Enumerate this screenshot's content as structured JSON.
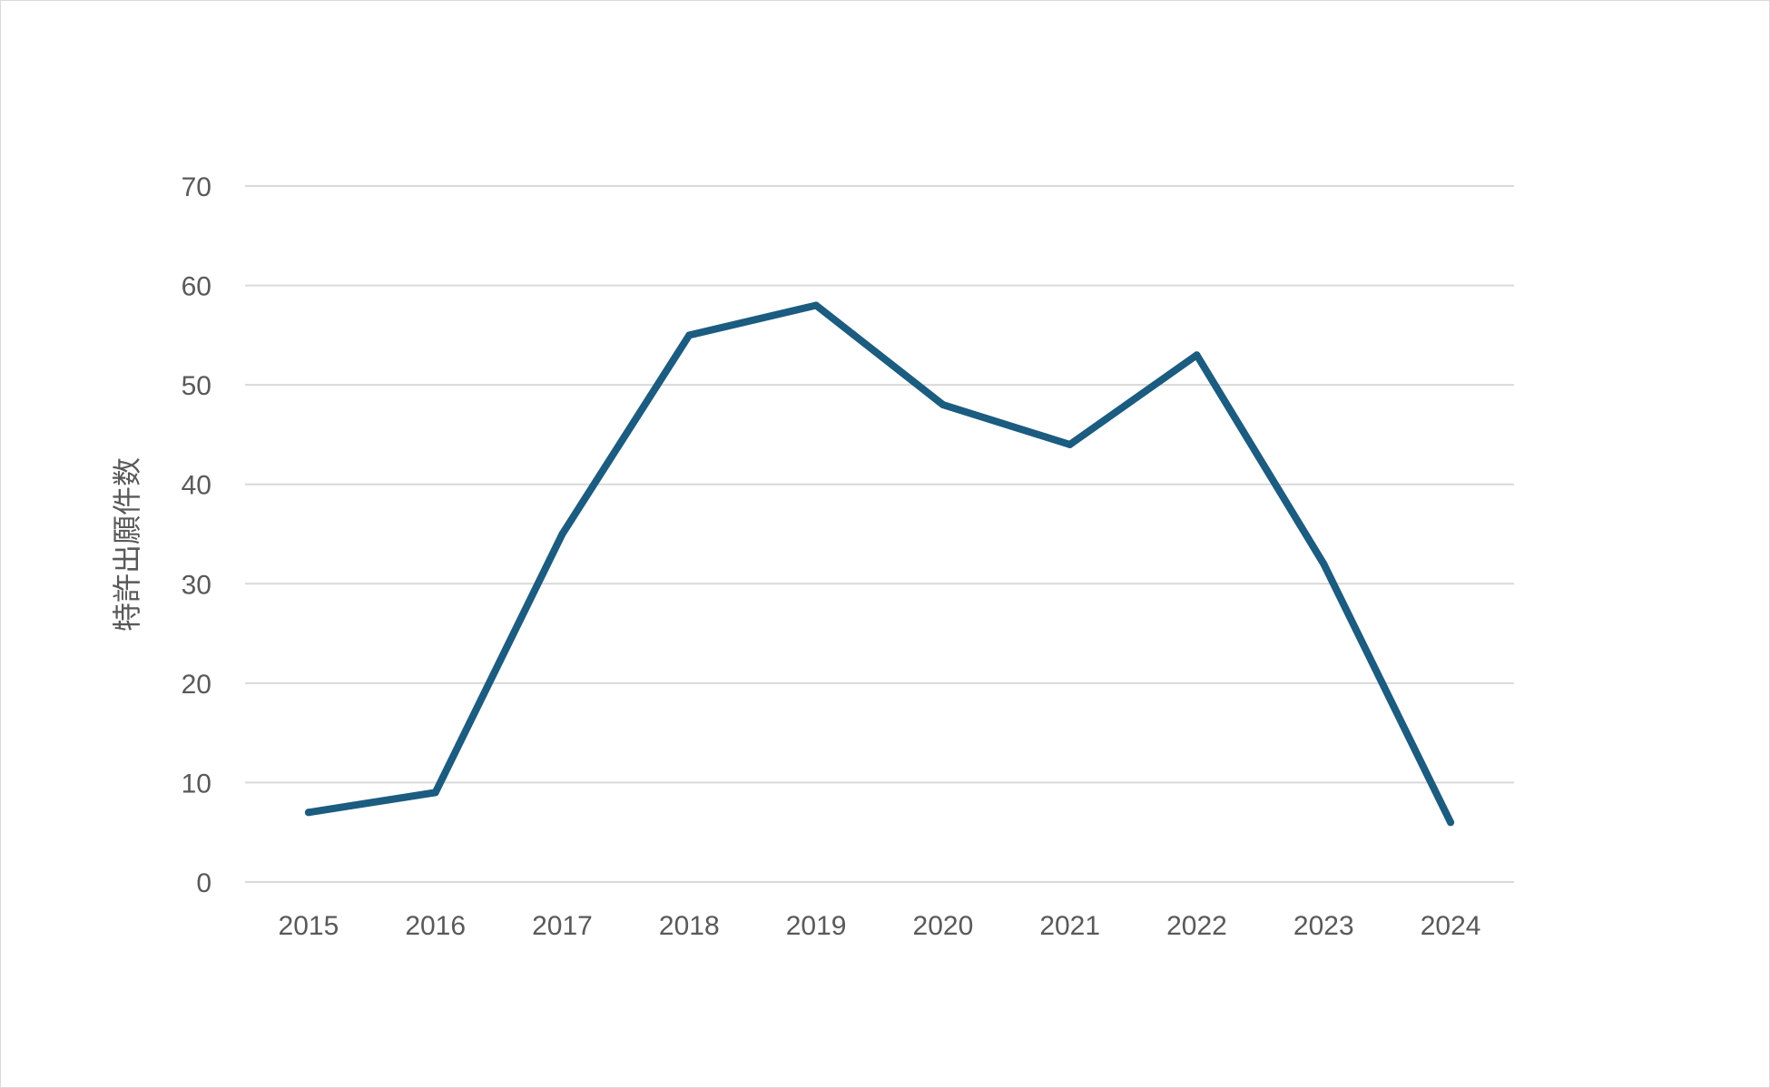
{
  "chart_data": {
    "type": "line",
    "title": "",
    "xlabel": "",
    "ylabel": "特許出願件数",
    "categories": [
      "2015",
      "2016",
      "2017",
      "2018",
      "2019",
      "2020",
      "2021",
      "2022",
      "2023",
      "2024"
    ],
    "series": [
      {
        "values": [
          7,
          9,
          35,
          55,
          58,
          48,
          44,
          53,
          32,
          6
        ],
        "color": "#1b5c80"
      }
    ],
    "ylim": [
      0,
      70
    ],
    "yticks": [
      0,
      10,
      20,
      30,
      40,
      50,
      60,
      70
    ],
    "grid": true,
    "legend": "none"
  }
}
